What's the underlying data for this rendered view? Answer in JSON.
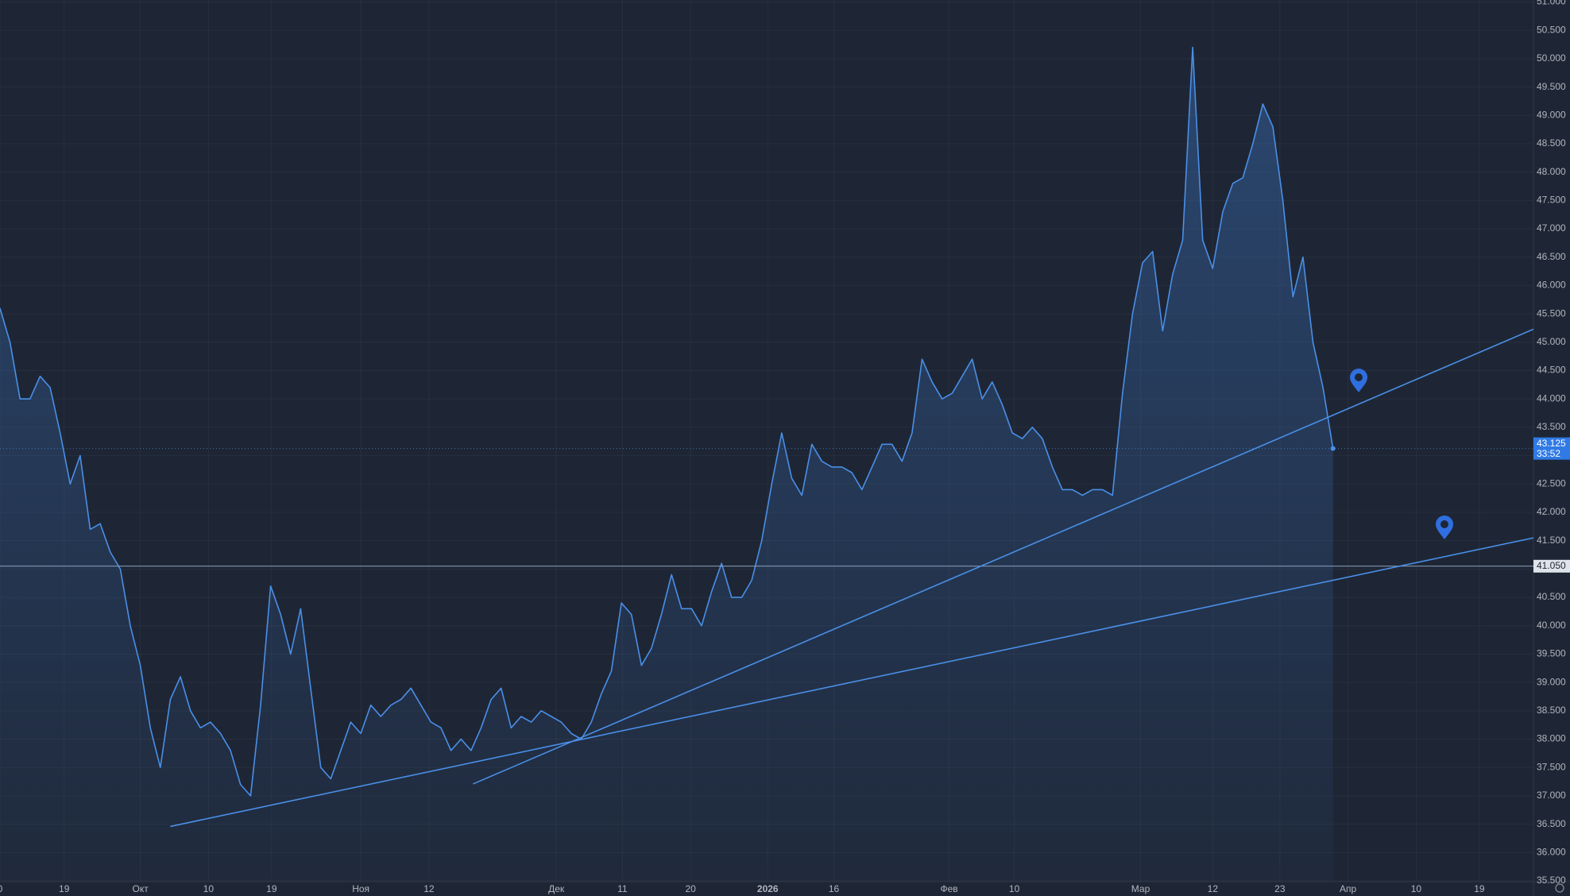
{
  "chart_data": {
    "type": "area",
    "color": "#4a8fe7",
    "values": [
      45.6,
      45.0,
      44.0,
      44.0,
      44.4,
      44.2,
      43.4,
      42.5,
      43.0,
      41.7,
      41.8,
      41.3,
      41.0,
      40.0,
      39.3,
      38.2,
      37.5,
      38.7,
      39.1,
      38.5,
      38.2,
      38.3,
      38.1,
      37.8,
      37.2,
      37.0,
      38.6,
      40.7,
      40.2,
      39.5,
      40.3,
      38.9,
      37.5,
      37.3,
      37.8,
      38.3,
      38.1,
      38.6,
      38.4,
      38.6,
      38.7,
      38.9,
      38.6,
      38.3,
      38.2,
      37.8,
      38.0,
      37.8,
      38.2,
      38.7,
      38.9,
      38.2,
      38.4,
      38.3,
      38.5,
      38.4,
      38.3,
      38.1,
      38.0,
      38.3,
      38.8,
      39.2,
      40.4,
      40.2,
      39.3,
      39.6,
      40.2,
      40.9,
      40.3,
      40.3,
      40.0,
      40.6,
      41.1,
      40.5,
      40.5,
      40.8,
      41.5,
      42.5,
      43.4,
      42.6,
      42.3,
      43.2,
      42.9,
      42.8,
      42.8,
      42.7,
      42.4,
      42.8,
      43.2,
      43.2,
      42.9,
      43.4,
      44.7,
      44.3,
      44.0,
      44.1,
      44.4,
      44.7,
      44.0,
      44.3,
      43.9,
      43.4,
      43.3,
      43.5,
      43.3,
      42.8,
      42.4,
      42.4,
      42.3,
      42.4,
      42.4,
      42.3,
      44.1,
      45.5,
      46.4,
      46.6,
      45.2,
      46.2,
      46.8,
      50.2,
      46.8,
      46.3,
      47.3,
      47.8,
      47.9,
      48.5,
      49.2,
      48.8,
      47.5,
      45.8,
      46.5,
      45.0,
      44.2,
      43.125
    ],
    "countdown": "33:52",
    "level": {
      "value": 41.05,
      "label": "41.050"
    },
    "trendlines": [
      {
        "x": [
          17,
          153
        ],
        "y": [
          36.46,
          41.55
        ]
      },
      {
        "x": [
          47.2,
          153
        ],
        "y": [
          37.21,
          45.23
        ]
      }
    ],
    "xlim": [
      0,
      153
    ],
    "xticks": [
      {
        "value": 0,
        "label": "0"
      },
      {
        "value": 6.4,
        "label": "19"
      },
      {
        "value": 14,
        "label": "Окт"
      },
      {
        "value": 20.8,
        "label": "10"
      },
      {
        "value": 27.1,
        "label": "19"
      },
      {
        "value": 36,
        "label": "Ноя"
      },
      {
        "value": 42.8,
        "label": "12"
      },
      {
        "value": 55.5,
        "label": "Дек"
      },
      {
        "value": 62.1,
        "label": "11"
      },
      {
        "value": 68.9,
        "label": "20"
      },
      {
        "value": 76.6,
        "label": "2026"
      },
      {
        "value": 83.2,
        "label": "16"
      },
      {
        "value": 94.7,
        "label": "Фев"
      },
      {
        "value": 101.2,
        "label": "10"
      },
      {
        "value": 113.8,
        "label": "Мар"
      },
      {
        "value": 121,
        "label": "12"
      },
      {
        "value": 127.7,
        "label": "23"
      },
      {
        "value": 134.5,
        "label": "Апр"
      },
      {
        "value": 141.3,
        "label": "10"
      },
      {
        "value": 147.6,
        "label": "19"
      }
    ],
    "ylim": [
      35.5,
      51
    ],
    "yticks": [
      {
        "value": 35.5,
        "label": "35.500"
      },
      {
        "value": 36,
        "label": "36.000"
      },
      {
        "value": 36.5,
        "label": "36.500"
      },
      {
        "value": 37,
        "label": "37.000"
      },
      {
        "value": 37.5,
        "label": "37.500"
      },
      {
        "value": 38,
        "label": "38.000"
      },
      {
        "value": 38.5,
        "label": "38.500"
      },
      {
        "value": 39,
        "label": "39.000"
      },
      {
        "value": 39.5,
        "label": "39.500"
      },
      {
        "value": 40,
        "label": "40.000"
      },
      {
        "value": 40.5,
        "label": "40.500"
      },
      {
        "value": 41,
        "label": "41.000"
      },
      {
        "value": 41.5,
        "label": "41.500"
      },
      {
        "value": 42,
        "label": "42.000"
      },
      {
        "value": 42.5,
        "label": "42.500"
      },
      {
        "value": 43,
        "label": "43.000"
      },
      {
        "value": 43.5,
        "label": "43.500"
      },
      {
        "value": 44,
        "label": "44.000"
      },
      {
        "value": 44.5,
        "label": "44.500"
      },
      {
        "value": 45,
        "label": "45.000"
      },
      {
        "value": 45.5,
        "label": "45.500"
      },
      {
        "value": 46,
        "label": "46.000"
      },
      {
        "value": 46.5,
        "label": "46.500"
      },
      {
        "value": 47,
        "label": "47.000"
      },
      {
        "value": 47.5,
        "label": "47.500"
      },
      {
        "value": 48,
        "label": "48.000"
      },
      {
        "value": 48.5,
        "label": "48.500"
      },
      {
        "value": 49,
        "label": "49.000"
      },
      {
        "value": 49.5,
        "label": "49.500"
      },
      {
        "value": 50,
        "label": "50.000"
      },
      {
        "value": 50.5,
        "label": "50.500"
      },
      {
        "value": 51,
        "label": "51.000"
      }
    ],
    "grid": true
  }
}
